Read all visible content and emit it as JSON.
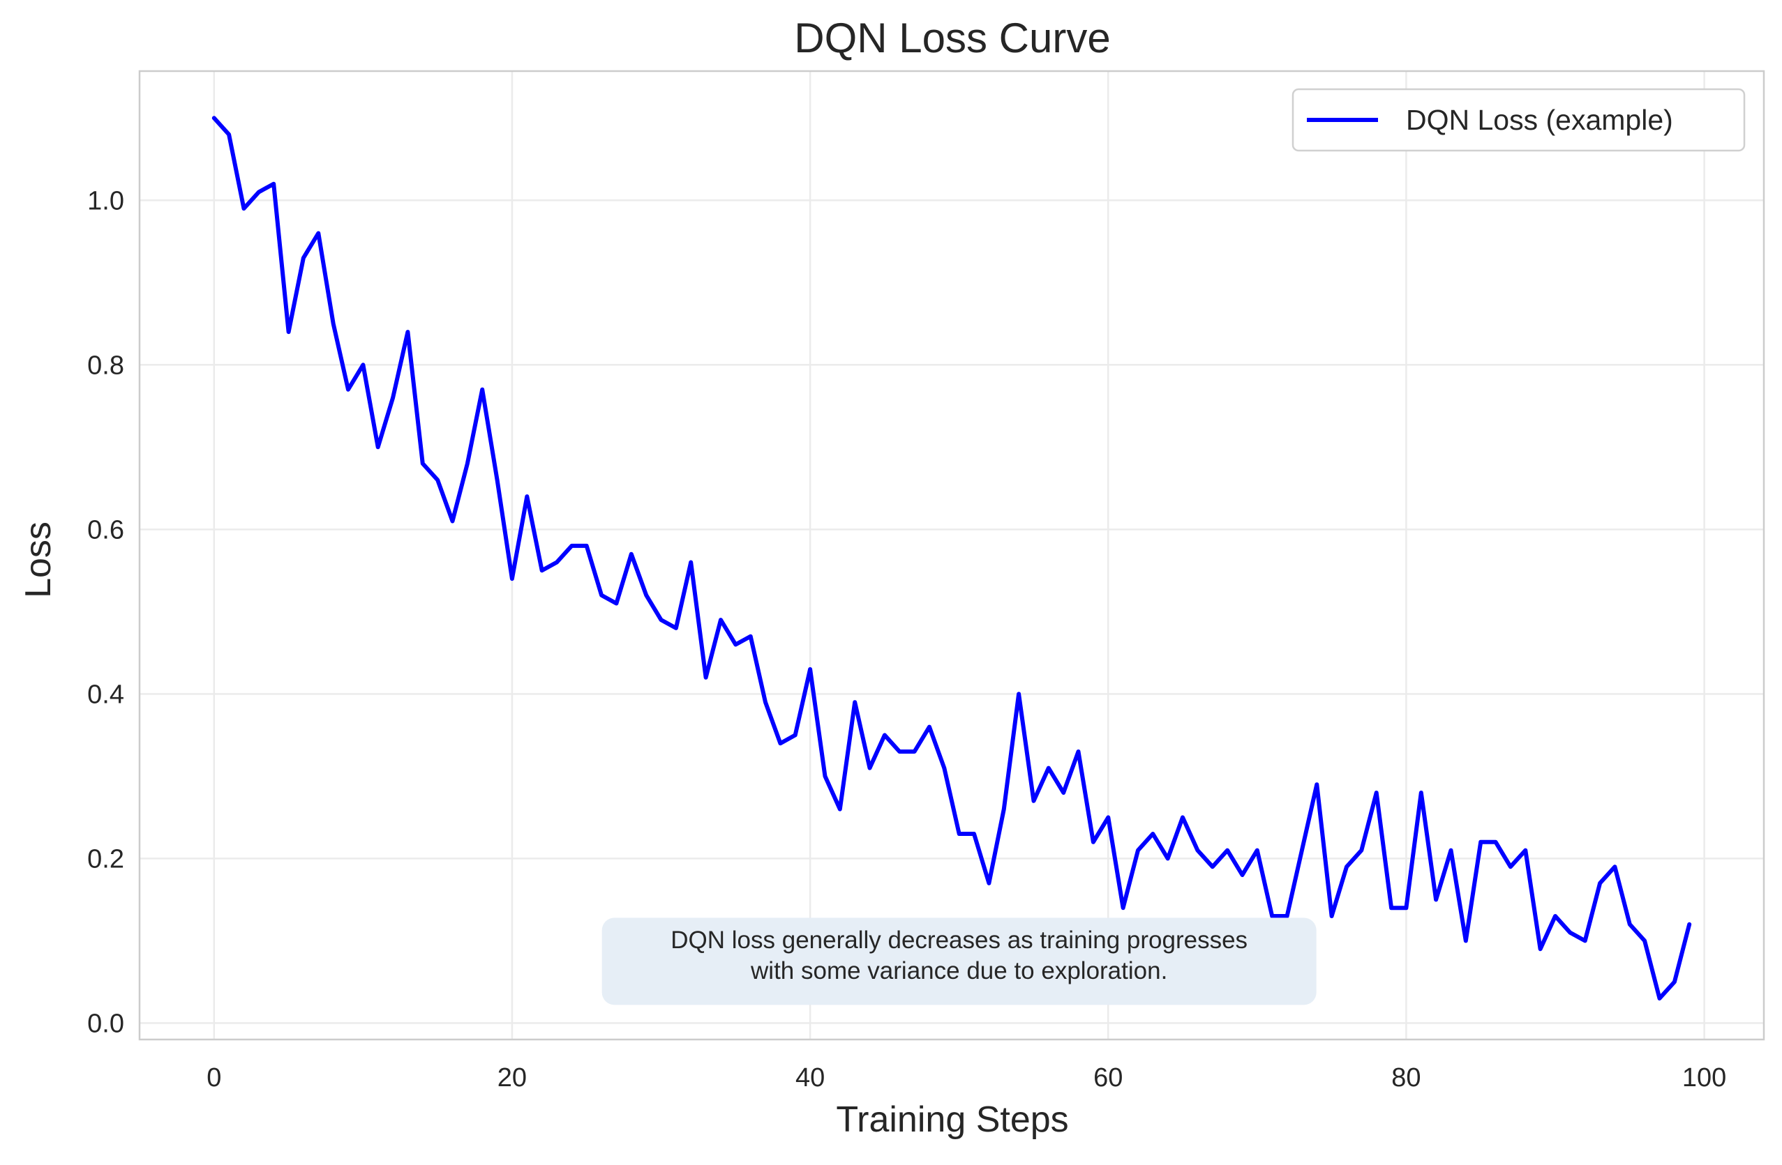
{
  "chart_data": {
    "type": "line",
    "title": "DQN Loss Curve",
    "xlabel": "Training Steps",
    "ylabel": "Loss",
    "xlim": [
      -5,
      104
    ],
    "ylim": [
      -0.02,
      1.157
    ],
    "xticks": [
      0,
      20,
      40,
      60,
      80,
      100
    ],
    "yticks": [
      0.0,
      0.2,
      0.4,
      0.6,
      0.8,
      1.0
    ],
    "xtick_labels": [
      "0",
      "20",
      "40",
      "60",
      "80",
      "100"
    ],
    "ytick_labels": [
      "0.0",
      "0.2",
      "0.4",
      "0.6",
      "0.8",
      "1.0"
    ],
    "grid": true,
    "legend_position": "top-right",
    "series": [
      {
        "name": "DQN Loss (example)",
        "color": "#0000ff",
        "x": [
          0,
          1,
          2,
          3,
          4,
          5,
          6,
          7,
          8,
          9,
          10,
          11,
          12,
          13,
          14,
          15,
          16,
          17,
          18,
          19,
          20,
          21,
          22,
          23,
          24,
          25,
          26,
          27,
          28,
          29,
          30,
          31,
          32,
          33,
          34,
          35,
          36,
          37,
          38,
          39,
          40,
          41,
          42,
          43,
          44,
          45,
          46,
          47,
          48,
          49,
          50,
          51,
          52,
          53,
          54,
          55,
          56,
          57,
          58,
          59,
          60,
          61,
          62,
          63,
          64,
          65,
          66,
          67,
          68,
          69,
          70,
          71,
          72,
          73,
          74,
          75,
          76,
          77,
          78,
          79,
          80,
          81,
          82,
          83,
          84,
          85,
          86,
          87,
          88,
          89,
          90,
          91,
          92,
          93,
          94,
          95,
          96,
          97,
          98,
          99
        ],
        "values": [
          1.1,
          1.08,
          0.99,
          1.01,
          1.02,
          0.84,
          0.93,
          0.96,
          0.85,
          0.77,
          0.8,
          0.7,
          0.76,
          0.84,
          0.68,
          0.66,
          0.61,
          0.68,
          0.77,
          0.66,
          0.54,
          0.64,
          0.55,
          0.56,
          0.58,
          0.58,
          0.52,
          0.51,
          0.57,
          0.52,
          0.49,
          0.48,
          0.56,
          0.42,
          0.49,
          0.46,
          0.47,
          0.39,
          0.34,
          0.35,
          0.43,
          0.3,
          0.26,
          0.39,
          0.31,
          0.35,
          0.33,
          0.33,
          0.36,
          0.31,
          0.23,
          0.23,
          0.17,
          0.26,
          0.4,
          0.27,
          0.31,
          0.28,
          0.33,
          0.22,
          0.25,
          0.14,
          0.21,
          0.23,
          0.2,
          0.25,
          0.21,
          0.19,
          0.21,
          0.18,
          0.21,
          0.13,
          0.13,
          0.21,
          0.29,
          0.13,
          0.19,
          0.21,
          0.28,
          0.14,
          0.14,
          0.28,
          0.15,
          0.21,
          0.1,
          0.22,
          0.22,
          0.19,
          0.21,
          0.09,
          0.13,
          0.11,
          0.1,
          0.17,
          0.19,
          0.12,
          0.1,
          0.03,
          0.05,
          0.12
        ]
      }
    ],
    "annotations": [
      {
        "text_lines": [
          "DQN loss generally decreases as training progresses",
          "with some variance due to exploration."
        ],
        "x": 50,
        "y": 0.075,
        "background": "#e6eef6"
      }
    ]
  }
}
